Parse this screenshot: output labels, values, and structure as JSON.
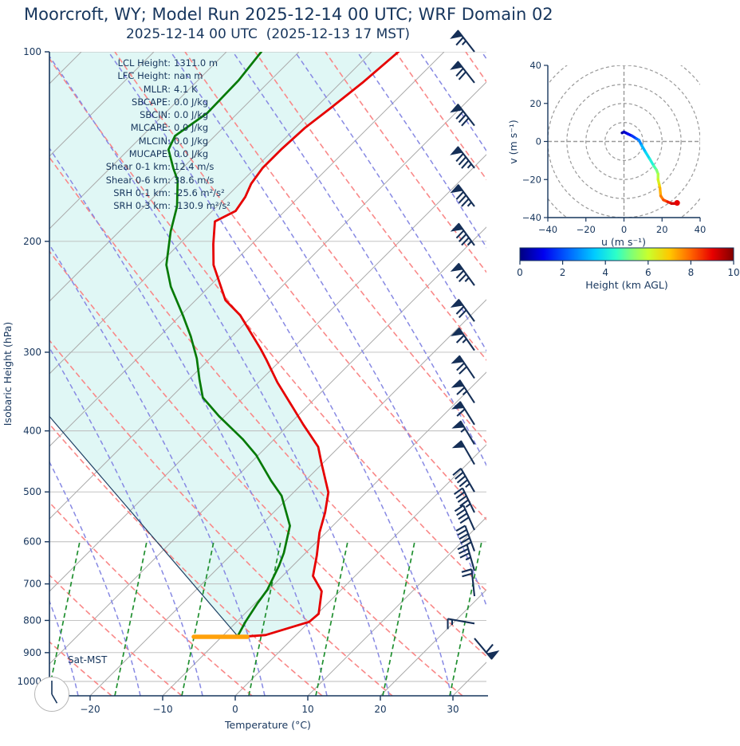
{
  "title": "Moorcroft, WY; Model Run 2025-12-14 00 UTC; WRF Domain 02",
  "subtitle": "2025-12-14 00 UTC  (2025-12-13 17 MST)",
  "colors": {
    "text_navy": "#17365d",
    "temperature_line": "#e60000",
    "dewpoint_line": "#067a06",
    "parcel_line": "#1d3f63",
    "cin_shade": "#e0f7f5",
    "isotherm_gray": "#ababab",
    "pressure_gridline": "#bbbbbb",
    "dry_adiabat": "#f98888",
    "moist_adiabat": "#8789e3",
    "mixing_ratio": "#1f8f2f",
    "surface_bar": "#ffa10a",
    "wind_barb": "#152f57",
    "hodo_grid": "#999999",
    "jet_stops": [
      [
        0,
        "#000080"
      ],
      [
        0.11,
        "#0000f0"
      ],
      [
        0.23,
        "#0066ff"
      ],
      [
        0.35,
        "#00ccff"
      ],
      [
        0.45,
        "#2cffc9"
      ],
      [
        0.52,
        "#7dff78"
      ],
      [
        0.6,
        "#c8ff2d"
      ],
      [
        0.7,
        "#ffc800"
      ],
      [
        0.8,
        "#ff6400"
      ],
      [
        0.9,
        "#e80000"
      ],
      [
        1,
        "#800000"
      ]
    ]
  },
  "skewt": {
    "x_axis_label": "Temperature (°C)",
    "y_axis_label": "Isobaric Height (hPa)",
    "x_ticks": [
      -20,
      -10,
      0,
      10,
      20,
      30
    ],
    "y_ticks": [
      100,
      200,
      300,
      400,
      500,
      600,
      700,
      800,
      900,
      1000
    ],
    "stats": [
      {
        "label": "LCL Height:",
        "value": "1311.0 m"
      },
      {
        "label": "LFC Height:",
        "value": "nan m"
      },
      {
        "label": "MLLR:",
        "value": "4.1 K"
      },
      {
        "label": "SBCAPE:",
        "value": "0.0 J/kg"
      },
      {
        "label": "SBCIN:",
        "value": "0.0 J/kg"
      },
      {
        "label": "MLCAPE:",
        "value": "0.0 J/kg"
      },
      {
        "label": "MLCIN:",
        "value": "0.0 J/kg"
      },
      {
        "label": "MUCAPE:",
        "value": "0.0 J/kg"
      },
      {
        "label": "Shear 0-1 km:",
        "value": "12.4 m/s"
      },
      {
        "label": "Shear 0-6 km:",
        "value": "38.6 m/s"
      },
      {
        "label": "SRH 0-1 km:",
        "value": "-25.6 m²/s²"
      },
      {
        "label": "SRH 0-3 km:",
        "value": "-130.9 m²/s²"
      }
    ],
    "clock_label": "Sat-MST",
    "clock": {
      "hour_angle_deg": 150,
      "minute_angle_deg": 0
    }
  },
  "hodograph": {
    "x_label": "u (m s⁻¹)",
    "y_label": "v (m s⁻¹)",
    "ticks": [
      -40,
      -20,
      0,
      20,
      40
    ],
    "rings": [
      10,
      20,
      30,
      40,
      50
    ]
  },
  "colorbar": {
    "label": "Height (km AGL)",
    "ticks": [
      0,
      2,
      4,
      6,
      8,
      10
    ],
    "min": 0,
    "max": 10
  },
  "chart_data": [
    {
      "type": "line",
      "name": "skewt_sounding",
      "xlabel": "Temperature (°C)",
      "ylabel": "Isobaric Height (hPa)",
      "x_range_at_surface_C": [
        -25.6,
        34.6
      ],
      "pressure_range_hPa": [
        100,
        1055
      ],
      "surface_pressure_hPa": 849,
      "temperature_profile_p_T": [
        [
          100,
          -66.3
        ],
        [
          112,
          -67.0
        ],
        [
          123,
          -67.9
        ],
        [
          132,
          -68.7
        ],
        [
          143,
          -69.0
        ],
        [
          153,
          -69.0
        ],
        [
          162,
          -68.4
        ],
        [
          170,
          -67.4
        ],
        [
          179,
          -66.8
        ],
        [
          186,
          -68.2
        ],
        [
          202,
          -65.3
        ],
        [
          218,
          -62.4
        ],
        [
          248,
          -55.9
        ],
        [
          262,
          -51.8
        ],
        [
          296,
          -44.4
        ],
        [
          308,
          -42.1
        ],
        [
          335,
          -37.4
        ],
        [
          366,
          -32.0
        ],
        [
          391,
          -28.0
        ],
        [
          424,
          -22.9
        ],
        [
          449,
          -20.3
        ],
        [
          501,
          -15.2
        ],
        [
          539,
          -12.9
        ],
        [
          580,
          -10.9
        ],
        [
          631,
          -8.1
        ],
        [
          680,
          -5.8
        ],
        [
          719,
          -2.5
        ],
        [
          781,
          0.2
        ],
        [
          804,
          0.0
        ],
        [
          844,
          -4.2
        ],
        [
          849,
          -7.0
        ]
      ],
      "dewpoint_profile_p_T": [
        [
          100,
          -85.2
        ],
        [
          111,
          -84.4
        ],
        [
          125,
          -84.2
        ],
        [
          136,
          -85.5
        ],
        [
          143,
          -84.5
        ],
        [
          153,
          -81.3
        ],
        [
          160,
          -79.0
        ],
        [
          176,
          -75.5
        ],
        [
          193,
          -72.9
        ],
        [
          218,
          -68.9
        ],
        [
          236,
          -65.3
        ],
        [
          262,
          -59.7
        ],
        [
          283,
          -55.7
        ],
        [
          307,
          -51.8
        ],
        [
          331,
          -48.6
        ],
        [
          354,
          -45.6
        ],
        [
          379,
          -40.8
        ],
        [
          412,
          -34.4
        ],
        [
          437,
          -30.3
        ],
        [
          480,
          -24.7
        ],
        [
          507,
          -21.2
        ],
        [
          566,
          -15.9
        ],
        [
          625,
          -13.0
        ],
        [
          655,
          -11.9
        ],
        [
          715,
          -10.2
        ],
        [
          751,
          -9.7
        ],
        [
          804,
          -8.8
        ],
        [
          832,
          -8.2
        ],
        [
          847,
          -7.9
        ]
      ],
      "parcel_trace_p_T": [
        [
          379,
          -64.2
        ],
        [
          846,
          -8.0
        ]
      ],
      "wind_barbs_p_rot_pen_full_half": [
        [
          100,
          -38,
          1,
          1,
          1
        ],
        [
          112,
          -38,
          1,
          2,
          0
        ],
        [
          131,
          -38,
          1,
          3,
          0
        ],
        [
          153,
          -38,
          1,
          3,
          1
        ],
        [
          176,
          -37,
          1,
          3,
          1
        ],
        [
          203,
          -36,
          1,
          3,
          1
        ],
        [
          235,
          -36,
          1,
          2,
          1
        ],
        [
          268,
          -36,
          1,
          2,
          0
        ],
        [
          298,
          -35,
          1,
          1,
          1
        ],
        [
          330,
          -34,
          1,
          2,
          0
        ],
        [
          361,
          -33,
          1,
          1,
          1
        ],
        [
          391,
          -32,
          1,
          1,
          0
        ],
        [
          420,
          -31,
          1,
          0,
          1
        ],
        [
          452,
          -30,
          1,
          0,
          0
        ],
        [
          500,
          -30,
          0,
          4,
          1
        ],
        [
          539,
          -26,
          0,
          4,
          1
        ],
        [
          575,
          -24,
          0,
          4,
          0
        ],
        [
          621,
          -20,
          0,
          4,
          1
        ],
        [
          667,
          -16,
          0,
          3,
          1
        ],
        [
          732,
          -6,
          0,
          2,
          0
        ],
        [
          809,
          -80,
          0,
          1,
          1
        ],
        [
          854,
          140,
          1,
          1,
          0
        ]
      ]
    },
    {
      "type": "line",
      "name": "hodograph",
      "xlabel": "u (m s⁻¹)",
      "ylabel": "v (m s⁻¹)",
      "xlim": [
        -40,
        40
      ],
      "ylim": [
        -40,
        40
      ],
      "u_ms": [
        -1,
        0,
        2,
        4.3,
        6.5,
        7.9,
        9.3,
        11.4,
        13.6,
        15.7,
        17.1,
        17.9,
        17.9,
        18.6,
        18.9,
        19.3,
        20.7,
        22.9,
        25,
        27.1,
        27.9
      ],
      "v_ms": [
        4.5,
        5,
        4,
        2.9,
        1.5,
        0.7,
        -2.1,
        -5.7,
        -9.3,
        -12.9,
        -15,
        -17.1,
        -20,
        -22.9,
        -24.5,
        -28.6,
        -30.7,
        -31.7,
        -32.6,
        -32.6,
        -32.3
      ],
      "height_km": [
        0,
        0.5,
        1,
        1.5,
        2,
        2.5,
        3,
        3.5,
        4,
        4.5,
        5,
        5.5,
        6,
        6.5,
        7,
        7.5,
        8,
        8.5,
        9,
        9.5,
        10
      ],
      "color_by": "Height (km AGL), jet colormap 0-10"
    }
  ]
}
